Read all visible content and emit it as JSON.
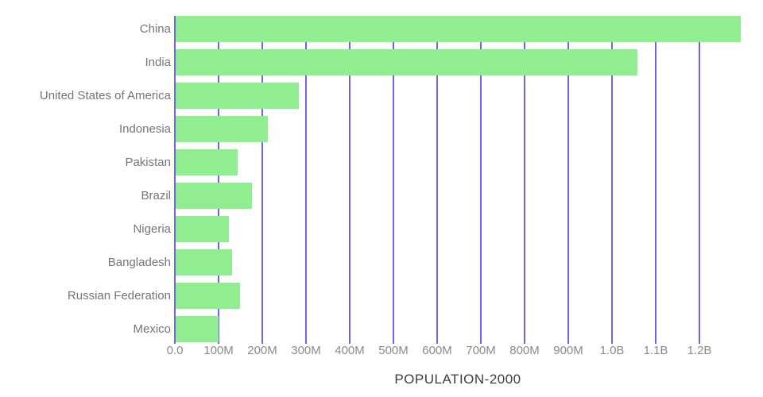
{
  "chart_data": {
    "type": "bar",
    "orientation": "horizontal",
    "title": "POPULATION-2000",
    "categories": [
      "China",
      "India",
      "United States of America",
      "Indonesia",
      "Pakistan",
      "Brazil",
      "Nigeria",
      "Bangladesh",
      "Russian Federation",
      "Mexico"
    ],
    "values_millions": [
      1293,
      1057,
      282,
      211.5,
      142.4,
      174.5,
      121.3,
      128.5,
      147.5,
      98.8
    ],
    "x_tick_labels": [
      "0.0",
      "100M",
      "200M",
      "300M",
      "400M",
      "500M",
      "600M",
      "700M",
      "800M",
      "900M",
      "1.0B",
      "1.1B",
      "1.2B"
    ],
    "x_tick_values_millions": [
      0,
      100,
      200,
      300,
      400,
      500,
      600,
      700,
      800,
      900,
      1000,
      1100,
      1200
    ],
    "xlim_millions": [
      0,
      1300
    ],
    "grid": "vertical-only",
    "legend": "none",
    "colors": {
      "bar": "#90ee90",
      "grid": "#6f61f2",
      "country_label_text": "#757575",
      "tick_label_text": "#8a8a8a",
      "title_text": "#3d3d3d",
      "background": "#ffffff"
    }
  }
}
